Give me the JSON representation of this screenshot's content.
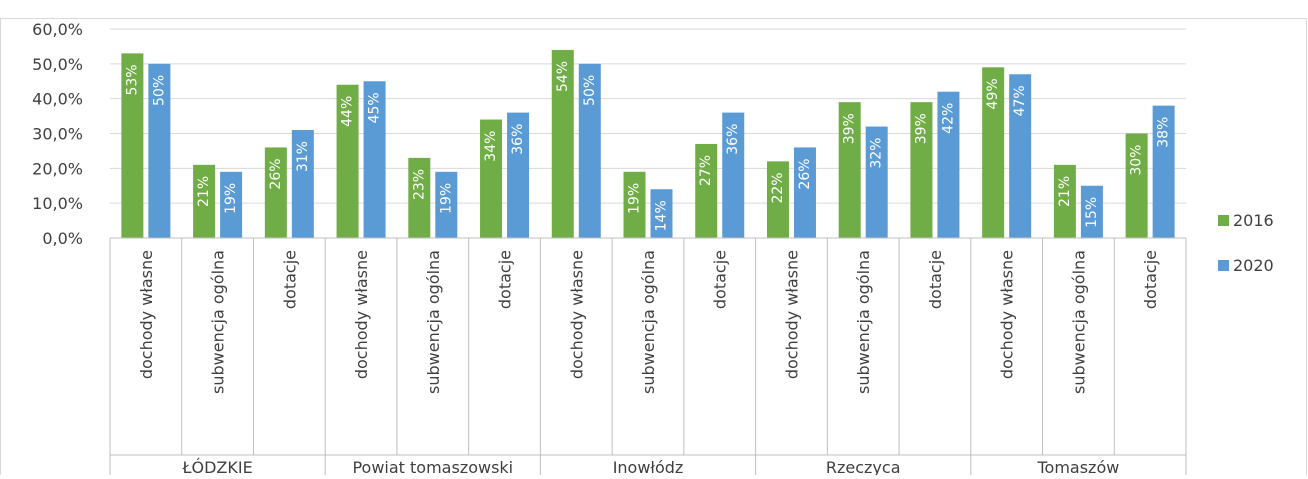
{
  "chart_data": {
    "type": "bar",
    "title": "",
    "xlabel": "",
    "ylabel": "",
    "ylim": [
      0,
      60
    ],
    "yticks": [
      0,
      10,
      20,
      30,
      40,
      50,
      60
    ],
    "ytick_labels": [
      "0,0%",
      "10,0%",
      "20,0%",
      "30,0%",
      "40,0%",
      "50,0%",
      "60,0%"
    ],
    "grid": true,
    "legend_position": "right",
    "groups": [
      "ŁÓDZKIE",
      "Powiat tomaszowski",
      "Inowłódz",
      "Rzeczyca",
      "Tomaszów"
    ],
    "subcategories": [
      "dochody własne",
      "subwencja ogólna",
      "dotacje"
    ],
    "series": [
      {
        "name": "2016",
        "color": "#70AD47",
        "values": [
          53,
          21,
          26,
          44,
          23,
          34,
          54,
          19,
          27,
          22,
          39,
          39,
          49,
          21,
          30
        ],
        "labels": [
          "53%",
          "21%",
          "26%",
          "44%",
          "23%",
          "34%",
          "54%",
          "19%",
          "27%",
          "22%",
          "39%",
          "39%",
          "49%",
          "21%",
          "30%"
        ]
      },
      {
        "name": "2020",
        "color": "#5B9BD5",
        "values": [
          50,
          19,
          31,
          45,
          19,
          36,
          50,
          14,
          36,
          26,
          32,
          42,
          47,
          15,
          38
        ],
        "labels": [
          "50%",
          "19%",
          "31%",
          "45%",
          "19%",
          "36%",
          "50%",
          "14%",
          "36%",
          "26%",
          "32%",
          "42%",
          "47%",
          "15%",
          "38%"
        ]
      }
    ]
  }
}
